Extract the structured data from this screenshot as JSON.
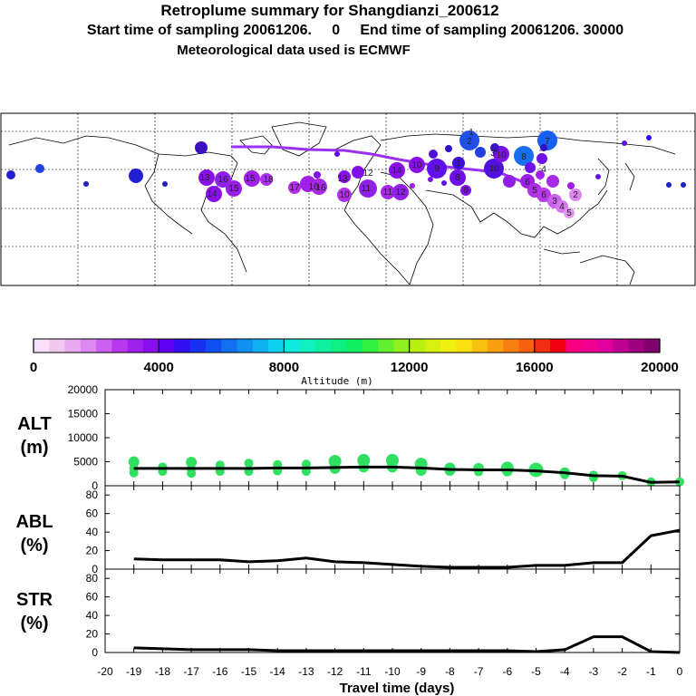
{
  "header": {
    "title": "Retroplume summary for Shangdianzi_200612",
    "sampling_line": "Start time of sampling 20061206.     0     End time of sampling 20061206. 30000",
    "met_line": "Meteorological data used is ECMWF"
  },
  "colorbar": {
    "label": "Altitude (m)",
    "ticks": [
      "0",
      "4000",
      "8000",
      "12000",
      "16000",
      "20000"
    ],
    "colors": [
      "#f8e0f8",
      "#f0c8f0",
      "#e8a8f0",
      "#dc88f0",
      "#cc60f0",
      "#b838f0",
      "#a020f0",
      "#8810f0",
      "#6000f0",
      "#3010f0",
      "#1830f0",
      "#1050f0",
      "#1070f0",
      "#1090f0",
      "#10b0f0",
      "#10d0f0",
      "#10e8e0",
      "#10f0c0",
      "#10f0a0",
      "#10f080",
      "#10f060",
      "#30f040",
      "#60f030",
      "#90f020",
      "#b8f010",
      "#d8f010",
      "#f0f010",
      "#f8e010",
      "#f8c010",
      "#f8a010",
      "#f88010",
      "#f86010",
      "#f03010",
      "#f00010",
      "#f80080",
      "#f00090",
      "#e000a0",
      "#c00090",
      "#a00080",
      "#800070"
    ]
  },
  "map_labels": {
    "points": [
      "18",
      "16",
      "15",
      "14",
      "15",
      "13",
      "17",
      "16",
      "16",
      "10",
      "11",
      "12",
      "13",
      "11",
      "12",
      "14",
      "10",
      "9",
      "8",
      "9",
      "10",
      "10",
      "8",
      "7",
      "6",
      "5",
      "6",
      "3",
      "4",
      "5",
      "2",
      "1",
      "2",
      "1",
      "3",
      "4"
    ]
  },
  "chart_data": [
    {
      "type": "line",
      "panel": "ALT",
      "ylabel": [
        "ALT",
        "(m)"
      ],
      "ylim": [
        0,
        20000
      ],
      "yticks": [
        "0",
        "5000",
        "10000",
        "15000",
        "20000"
      ],
      "x": [
        -19,
        -18,
        -17,
        -16,
        -15,
        -14,
        -13,
        -12,
        -11,
        -10,
        -9,
        -8,
        -7,
        -6,
        -5,
        -4,
        -3,
        -2,
        -1,
        0
      ],
      "values": [
        3600,
        3600,
        3600,
        3600,
        3600,
        3700,
        3700,
        3800,
        3900,
        3900,
        3700,
        3400,
        3300,
        3300,
        3100,
        2700,
        2100,
        2000,
        700,
        800
      ],
      "scatter_x": [
        -19,
        -19,
        -19,
        -18,
        -18,
        -17,
        -17,
        -17,
        -16,
        -16,
        -15,
        -15,
        -14,
        -14,
        -13,
        -13,
        -12,
        -12,
        -11,
        -11,
        -10,
        -10,
        -9,
        -9,
        -8,
        -8,
        -7,
        -7,
        -6,
        -6,
        -5,
        -4,
        -4,
        -3,
        -3,
        -2,
        -1,
        0
      ],
      "scatter_y": [
        5000,
        3600,
        2700,
        3900,
        3000,
        4900,
        3500,
        2600,
        4300,
        3000,
        4700,
        3000,
        4400,
        3100,
        4500,
        3000,
        5100,
        3600,
        5300,
        3900,
        5300,
        3900,
        4500,
        3200,
        3700,
        3200,
        3600,
        2900,
        3700,
        3100,
        3300,
        2700,
        2300,
        2200,
        1700,
        2100,
        800,
        800
      ]
    },
    {
      "type": "line",
      "panel": "ABL",
      "ylabel": [
        "ABL",
        "(%)"
      ],
      "ylim": [
        0,
        90
      ],
      "yticks": [
        "0",
        "20",
        "40",
        "60",
        "80"
      ],
      "x": [
        -19,
        -18,
        -17,
        -16,
        -15,
        -14,
        -13,
        -12,
        -11,
        -10,
        -9,
        -8,
        -7,
        -6,
        -5,
        -4,
        -3,
        -2,
        -1,
        0
      ],
      "values": [
        11,
        10,
        10,
        10,
        8,
        9,
        12,
        8,
        7,
        5,
        3,
        2,
        2,
        2,
        4,
        4,
        7,
        7,
        36,
        42
      ]
    },
    {
      "type": "line",
      "panel": "STR",
      "ylabel": [
        "STR",
        "(%)"
      ],
      "ylim": [
        0,
        90
      ],
      "yticks": [
        "0",
        "20",
        "40",
        "60",
        "80"
      ],
      "x": [
        -19,
        -18,
        -17,
        -16,
        -15,
        -14,
        -13,
        -12,
        -11,
        -10,
        -9,
        -8,
        -7,
        -6,
        -5,
        -4,
        -3,
        -2,
        -1,
        0
      ],
      "values": [
        5,
        4,
        3,
        3,
        3,
        2,
        2,
        2,
        2,
        2,
        2,
        2,
        2,
        2,
        1,
        3,
        17,
        17,
        1,
        0
      ],
      "xlabel": "Travel time (days)",
      "xticks": [
        "-20",
        "-19",
        "-18",
        "-17",
        "-16",
        "-15",
        "-14",
        "-13",
        "-12",
        "-11",
        "-10",
        "-9",
        "-8",
        "-7",
        "-6",
        "-5",
        "-4",
        "-3",
        "-2",
        "-1",
        "0"
      ]
    }
  ]
}
